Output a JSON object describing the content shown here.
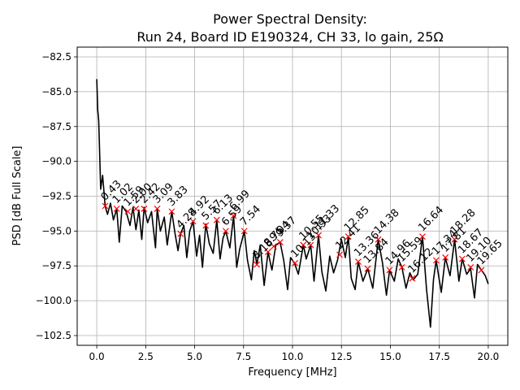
{
  "chart_data": {
    "type": "line",
    "title_line1": "Power Spectral Density:",
    "title_line2": "Run 24, Board ID E190324, CH 33, lo gain, 25Ω",
    "xlabel": "Frequency [MHz]",
    "ylabel": "PSD [dB Full Scale]",
    "xlim": [
      -1.0,
      21.0
    ],
    "ylim": [
      -103.2,
      -81.8
    ],
    "grid": true,
    "xticks": [
      0.0,
      2.5,
      5.0,
      7.5,
      10.0,
      12.5,
      15.0,
      17.5,
      20.0
    ],
    "xtick_labels": [
      "0.0",
      "2.5",
      "5.0",
      "7.5",
      "10.0",
      "12.5",
      "15.0",
      "17.5",
      "20.0"
    ],
    "yticks": [
      -82.5,
      -85.0,
      -87.5,
      -90.0,
      -92.5,
      -95.0,
      -97.5,
      -100.0,
      -102.5
    ],
    "ytick_labels": [
      "−82.5",
      "−85.0",
      "−87.5",
      "−90.0",
      "−92.5",
      "−95.0",
      "−97.5",
      "−100.0",
      "−102.5"
    ],
    "series": [
      {
        "name": "PSD",
        "color": "#000000",
        "x": [
          0.0,
          0.05,
          0.1,
          0.15,
          0.2,
          0.3,
          0.43,
          0.55,
          0.7,
          0.85,
          1.02,
          1.15,
          1.3,
          1.5,
          1.7,
          1.85,
          2.0,
          2.15,
          2.3,
          2.42,
          2.6,
          2.8,
          3.0,
          3.09,
          3.25,
          3.45,
          3.6,
          3.83,
          4.0,
          4.15,
          4.28,
          4.45,
          4.6,
          4.75,
          4.92,
          5.1,
          5.25,
          5.4,
          5.57,
          5.75,
          5.95,
          6.13,
          6.3,
          6.45,
          6.59,
          6.8,
          6.99,
          7.15,
          7.3,
          7.54,
          7.7,
          7.9,
          8.05,
          8.18,
          8.35,
          8.55,
          8.75,
          8.95,
          9.15,
          9.37,
          9.55,
          9.75,
          9.9,
          10.1,
          10.3,
          10.55,
          10.7,
          10.93,
          11.1,
          11.33,
          11.5,
          11.7,
          11.9,
          12.1,
          12.3,
          12.5,
          12.7,
          12.85,
          13.0,
          13.2,
          13.36,
          13.6,
          13.85,
          14.1,
          14.38,
          14.6,
          14.8,
          14.96,
          15.2,
          15.4,
          15.59,
          15.8,
          16.0,
          16.17,
          16.4,
          16.64,
          16.85,
          17.05,
          17.2,
          17.34,
          17.6,
          17.81,
          18.05,
          18.28,
          18.5,
          18.67,
          18.9,
          19.1,
          19.3,
          19.45,
          19.65,
          19.85,
          20.0
        ],
        "y": [
          -84.1,
          -86.3,
          -87.1,
          -89.5,
          -92.0,
          -91.0,
          -93.2,
          -93.8,
          -93.0,
          -94.2,
          -93.4,
          -95.8,
          -93.2,
          -93.6,
          -94.6,
          -93.3,
          -94.9,
          -93.5,
          -95.6,
          -93.3,
          -94.4,
          -93.6,
          -96.2,
          -93.4,
          -95.0,
          -94.0,
          -96.0,
          -93.6,
          -95.2,
          -96.4,
          -95.2,
          -94.6,
          -96.9,
          -95.0,
          -94.3,
          -96.8,
          -95.3,
          -97.6,
          -94.5,
          -95.9,
          -96.6,
          -94.2,
          -97.0,
          -95.5,
          -95.0,
          -96.2,
          -93.9,
          -97.6,
          -96.3,
          -95.0,
          -97.1,
          -98.5,
          -96.4,
          -97.4,
          -96.0,
          -98.9,
          -96.5,
          -97.8,
          -96.0,
          -95.8,
          -97.1,
          -99.2,
          -96.9,
          -97.3,
          -98.1,
          -96.0,
          -97.0,
          -96.0,
          -98.6,
          -95.3,
          -97.9,
          -99.3,
          -96.8,
          -98.0,
          -97.1,
          -95.6,
          -96.9,
          -95.4,
          -98.4,
          -99.2,
          -97.2,
          -98.6,
          -97.7,
          -99.1,
          -95.6,
          -97.3,
          -99.6,
          -97.8,
          -98.6,
          -97.0,
          -97.6,
          -99.1,
          -98.0,
          -98.5,
          -98.1,
          -95.4,
          -99.2,
          -101.9,
          -98.5,
          -97.1,
          -99.4,
          -96.9,
          -98.2,
          -95.6,
          -98.6,
          -97.0,
          -98.1,
          -97.7,
          -99.8,
          -97.4,
          -97.8,
          -98.2,
          -98.8
        ]
      }
    ],
    "peaks": [
      {
        "label": "0.43",
        "x": 0.43,
        "y": -93.2
      },
      {
        "label": "1.02",
        "x": 1.02,
        "y": -93.4
      },
      {
        "label": "1.59",
        "x": 1.59,
        "y": -93.6
      },
      {
        "label": "2.00",
        "x": 2.0,
        "y": -93.4
      },
      {
        "label": "2.42",
        "x": 2.42,
        "y": -93.4
      },
      {
        "label": "3.09",
        "x": 3.09,
        "y": -93.4
      },
      {
        "label": "3.83",
        "x": 3.83,
        "y": -93.6
      },
      {
        "label": "4.28",
        "x": 4.28,
        "y": -95.2
      },
      {
        "label": "4.92",
        "x": 4.92,
        "y": -94.3
      },
      {
        "label": "5.57",
        "x": 5.57,
        "y": -94.6
      },
      {
        "label": "6.13",
        "x": 6.13,
        "y": -94.2
      },
      {
        "label": "6.59",
        "x": 6.59,
        "y": -95.0
      },
      {
        "label": "6.99",
        "x": 6.99,
        "y": -93.9
      },
      {
        "label": "7.54",
        "x": 7.54,
        "y": -95.0
      },
      {
        "label": "8.18",
        "x": 8.18,
        "y": -97.4
      },
      {
        "label": "8.75",
        "x": 8.75,
        "y": -96.5
      },
      {
        "label": "9.04",
        "x": 9.04,
        "y": -96.1
      },
      {
        "label": "9.37",
        "x": 9.37,
        "y": -95.8
      },
      {
        "label": "10.13",
        "x": 10.13,
        "y": -97.3
      },
      {
        "label": "10.55",
        "x": 10.55,
        "y": -96.0
      },
      {
        "label": "10.93",
        "x": 10.93,
        "y": -96.0
      },
      {
        "label": "11.33",
        "x": 11.33,
        "y": -95.3
      },
      {
        "label": "12.41",
        "x": 12.41,
        "y": -96.7
      },
      {
        "label": "12.85",
        "x": 12.85,
        "y": -95.4
      },
      {
        "label": "13.36",
        "x": 13.36,
        "y": -97.2
      },
      {
        "label": "13.84",
        "x": 13.84,
        "y": -97.7
      },
      {
        "label": "14.38",
        "x": 14.38,
        "y": -95.6
      },
      {
        "label": "14.96",
        "x": 14.96,
        "y": -97.8
      },
      {
        "label": "15.59",
        "x": 15.59,
        "y": -97.6
      },
      {
        "label": "16.12",
        "x": 16.12,
        "y": -98.4
      },
      {
        "label": "16.64",
        "x": 16.64,
        "y": -95.4
      },
      {
        "label": "17.34",
        "x": 17.34,
        "y": -97.1
      },
      {
        "label": "17.81",
        "x": 17.81,
        "y": -96.9
      },
      {
        "label": "18.28",
        "x": 18.28,
        "y": -95.6
      },
      {
        "label": "18.67",
        "x": 18.67,
        "y": -97.0
      },
      {
        "label": "19.10",
        "x": 19.1,
        "y": -97.6
      },
      {
        "label": "19.65",
        "x": 19.65,
        "y": -97.8
      }
    ],
    "marker_color": "#ff0000"
  }
}
